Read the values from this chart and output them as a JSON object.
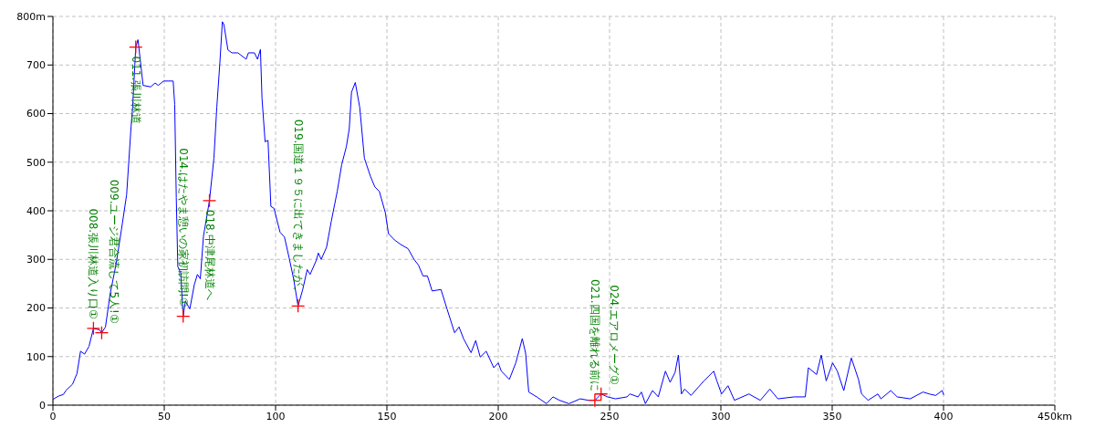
{
  "chart_data": {
    "type": "line",
    "xlim": [
      0,
      450
    ],
    "ylim": [
      0,
      800
    ],
    "xticks": [
      0,
      50,
      100,
      150,
      200,
      250,
      300,
      350,
      400,
      {
        "value": 450,
        "label": "450km"
      }
    ],
    "yticks": [
      0,
      100,
      200,
      300,
      400,
      500,
      600,
      700,
      {
        "value": 800,
        "label": "800m"
      }
    ],
    "grid": true,
    "series": [
      {
        "color": "#0000ff",
        "x": [
          0,
          2.7,
          4.7,
          6,
          8.8,
          10.8,
          12.4,
          14.2,
          16.2,
          18.2,
          20.9,
          21.9,
          23.6,
          25.7,
          28.4,
          30.8,
          33.1,
          35.1,
          35.8,
          37.2,
          38.2,
          39.2,
          40.5,
          43.9,
          45.9,
          47.3,
          49.7,
          54,
          54.7,
          55.4,
          56.1,
          57.4,
          58.5,
          59.5,
          61.5,
          63.5,
          64.9,
          66.2,
          67.6,
          70.3,
          72.3,
          73.6,
          75,
          76.1,
          76.8,
          78.6,
          80.4,
          83.1,
          86.8,
          87.8,
          90.5,
          91.9,
          93.2,
          93.9,
          95.3,
          96.6,
          97.9,
          99.3,
          102,
          104,
          106.1,
          108.1,
          110.1,
          112.2,
          114.2,
          115.5,
          118.2,
          119.2,
          120.5,
          122.9,
          125,
          127.7,
          129.7,
          131.8,
          133.1,
          134.1,
          135.8,
          137.8,
          139.9,
          142.6,
          144.6,
          146.6,
          149.3,
          150.7,
          153.4,
          156.1,
          159.5,
          162.2,
          164.2,
          166.2,
          168.2,
          170.3,
          174.3,
          177,
          180.4,
          182.4,
          184.5,
          187.8,
          189.9,
          191.9,
          194.6,
          198,
          200,
          201.4,
          205,
          207.9,
          210.8,
          212.3,
          213.7,
          217.3,
          221.7,
          224.6,
          227.5,
          231.8,
          236.8,
          240.5,
          243.4,
          246.2,
          249.1,
          252.7,
          257.8,
          259.2,
          262.8,
          264.3,
          266.1,
          269.3,
          271.9,
          275.1,
          277.2,
          279.4,
          280.9,
          282.3,
          283.7,
          286.6,
          292.4,
          296.8,
          298.2,
          300.3,
          303.2,
          306.1,
          312.6,
          317.7,
          322,
          325.6,
          332.9,
          337.9,
          339.3,
          343,
          345.1,
          347.3,
          350.2,
          352.3,
          355.2,
          358.6,
          361.8,
          363.2,
          366.1,
          370.5,
          371.9,
          376.3,
          379.2,
          385,
          390.8,
          393.6,
          396.5,
          399.4,
          400.1
        ],
        "values": [
          12,
          19,
          22,
          31,
          43,
          65,
          111,
          105,
          121,
          158,
          155,
          149,
          161,
          229,
          291,
          362,
          433,
          573,
          613,
          737,
          752,
          712,
          658,
          655,
          663,
          658,
          667,
          667,
          619,
          427,
          285,
          272,
          183,
          214,
          198,
          248,
          269,
          260,
          347,
          421,
          508,
          613,
          706,
          789,
          783,
          731,
          725,
          725,
          712,
          725,
          725,
          712,
          732,
          632,
          542,
          545,
          409,
          405,
          356,
          346,
          303,
          260,
          204,
          238,
          279,
          269,
          297,
          313,
          300,
          325,
          378,
          440,
          495,
          532,
          569,
          644,
          664,
          613,
          508,
          471,
          449,
          440,
          396,
          353,
          340,
          331,
          322,
          300,
          288,
          266,
          266,
          235,
          238,
          198,
          149,
          161,
          136,
          108,
          133,
          99,
          111,
          77,
          87,
          70,
          53,
          87,
          137,
          107,
          27,
          17,
          3,
          17,
          10,
          3,
          13,
          10,
          10,
          23,
          17,
          13,
          17,
          23,
          17,
          27,
          3,
          30,
          17,
          70,
          47,
          67,
          103,
          23,
          33,
          20,
          50,
          70,
          50,
          23,
          40,
          10,
          23,
          10,
          33,
          13,
          17,
          17,
          77,
          63,
          103,
          50,
          87,
          70,
          30,
          97,
          53,
          23,
          10,
          23,
          13,
          30,
          17,
          13,
          27,
          23,
          20,
          30,
          21
        ]
      }
    ],
    "annotations": [
      {
        "text": "008.張川林道入り口①",
        "x": 18.2,
        "y": 158
      },
      {
        "text": "009.ユージ君合流して5人!①",
        "x": 21.9,
        "y": 149
      },
      {
        "text": "011.張川林道",
        "x": 37.2,
        "y": 737
      },
      {
        "text": "014.はたやま憩いの家初訪問!①",
        "x": 58.5,
        "y": 183
      },
      {
        "text": "018.中津尾林道へ",
        "x": 70.3,
        "y": 421
      },
      {
        "text": "019.国道１９５に出てきましたが、",
        "x": 110.1,
        "y": 204
      },
      {
        "text": "021.四国を離れる前に",
        "x": 243.4,
        "y": 10
      },
      {
        "text": "024.エアロメーグ①",
        "x": 246.2,
        "y": 23
      }
    ]
  }
}
